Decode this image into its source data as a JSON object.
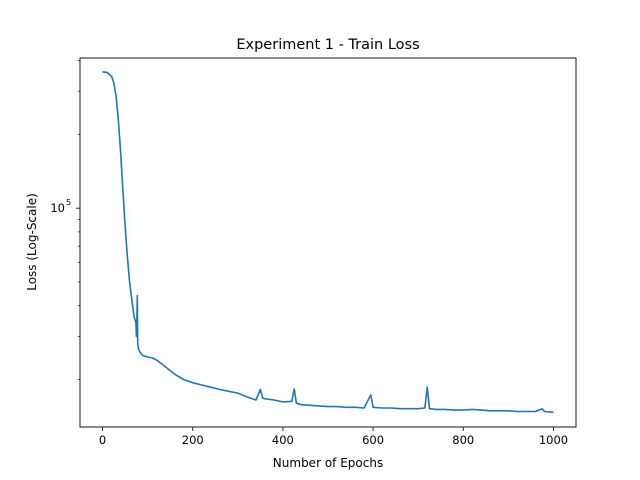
{
  "chart_data": {
    "type": "line",
    "title": "Experiment 1 - Train Loss",
    "xlabel": "Number of Epochs",
    "ylabel": "Loss (Log-Scale)",
    "yscale": "log",
    "xlim": [
      -50,
      1050
    ],
    "ylim": [
      12800,
      410000
    ],
    "xticks": [
      0,
      200,
      400,
      600,
      800,
      1000
    ],
    "xtick_labels": [
      "0",
      "200",
      "400",
      "600",
      "800",
      "1000"
    ],
    "yticks": [
      100000
    ],
    "ytick_labels": [
      {
        "base": "10",
        "exp": "5"
      }
    ],
    "grid": false,
    "color": "#1f77b4",
    "series": [
      {
        "x": [
          0,
          10,
          20,
          25,
          30,
          35,
          40,
          45,
          50,
          55,
          60,
          65,
          70,
          74,
          75,
          76,
          77,
          78,
          80,
          85,
          90,
          100,
          110,
          120,
          140,
          160,
          180,
          200,
          220,
          240,
          260,
          280,
          300,
          320,
          340,
          350,
          355,
          360,
          380,
          400,
          420,
          425,
          430,
          440,
          460,
          480,
          500,
          520,
          540,
          560,
          580,
          595,
          600,
          620,
          640,
          660,
          680,
          700,
          715,
          720,
          725,
          740,
          760,
          780,
          800,
          820,
          840,
          860,
          880,
          900,
          920,
          940,
          960,
          975,
          980,
          1000
        ],
        "y": [
          360000,
          358000,
          345000,
          325000,
          285000,
          230000,
          170000,
          120000,
          85000,
          64000,
          50000,
          42000,
          36000,
          34000,
          30000,
          33500,
          44000,
          28000,
          26500,
          25500,
          25000,
          24700,
          24500,
          24000,
          22500,
          21000,
          20000,
          19400,
          19000,
          18600,
          18200,
          17900,
          17600,
          17000,
          16500,
          18200,
          16800,
          16700,
          16500,
          16200,
          16300,
          18300,
          16000,
          15800,
          15700,
          15600,
          15500,
          15500,
          15400,
          15400,
          15300,
          17300,
          15400,
          15300,
          15300,
          15200,
          15200,
          15200,
          15300,
          18600,
          15200,
          15100,
          15100,
          15000,
          15000,
          15100,
          15000,
          14900,
          14900,
          14900,
          14800,
          14800,
          14800,
          15200,
          14800,
          14700
        ]
      }
    ]
  }
}
